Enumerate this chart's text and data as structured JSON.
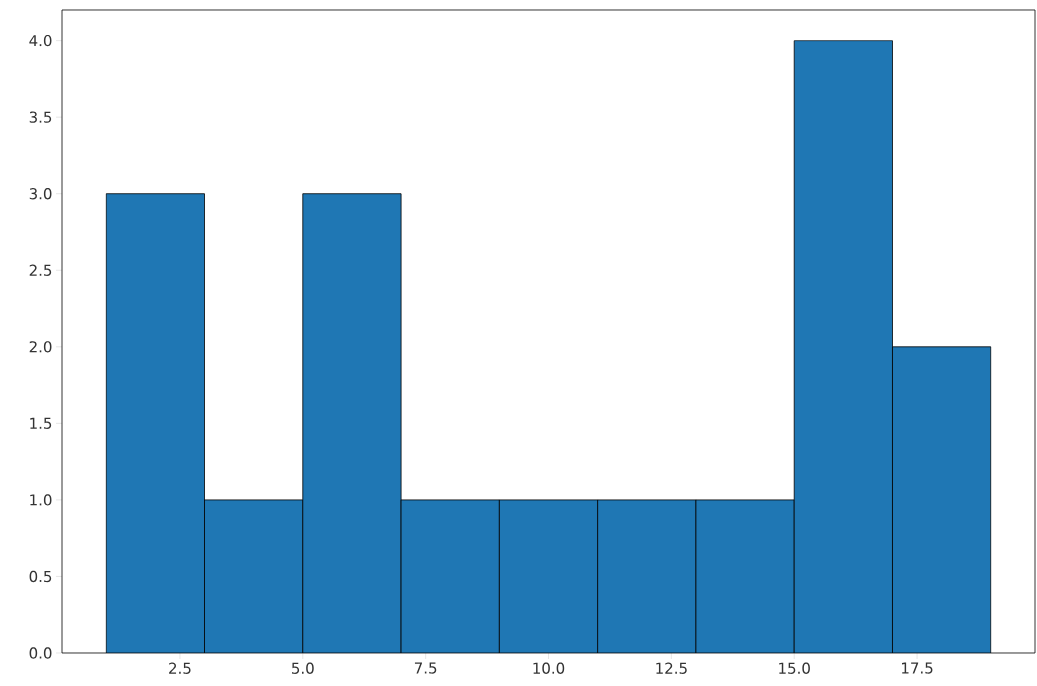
{
  "chart_data": {
    "type": "histogram",
    "color": "#1f77b4",
    "bins": [
      1,
      3,
      5,
      7,
      9,
      11,
      13,
      15,
      17,
      19
    ],
    "values": [
      3,
      1,
      3,
      1,
      1,
      1,
      1,
      4,
      2
    ],
    "xlim": [
      0.1,
      19.9
    ],
    "ylim": [
      0,
      4.2
    ],
    "xticks": [
      {
        "value": 2.5,
        "label": "2.5"
      },
      {
        "value": 5.0,
        "label": "5.0"
      },
      {
        "value": 7.5,
        "label": "7.5"
      },
      {
        "value": 10.0,
        "label": "10.0"
      },
      {
        "value": 12.5,
        "label": "12.5"
      },
      {
        "value": 15.0,
        "label": "15.0"
      },
      {
        "value": 17.5,
        "label": "17.5"
      }
    ],
    "yticks": [
      {
        "value": 0.0,
        "label": "0.0"
      },
      {
        "value": 0.5,
        "label": "0.5"
      },
      {
        "value": 1.0,
        "label": "1.0"
      },
      {
        "value": 1.5,
        "label": "1.5"
      },
      {
        "value": 2.0,
        "label": "2.0"
      },
      {
        "value": 2.5,
        "label": "2.5"
      },
      {
        "value": 3.0,
        "label": "3.0"
      },
      {
        "value": 3.5,
        "label": "3.5"
      },
      {
        "value": 4.0,
        "label": "4.0"
      }
    ]
  }
}
